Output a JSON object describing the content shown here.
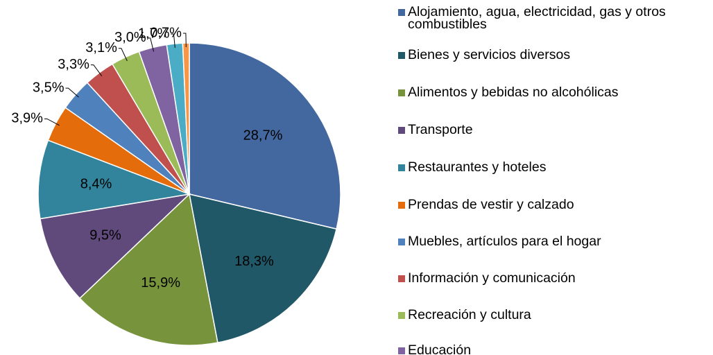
{
  "chart_data": {
    "type": "pie",
    "categories": [
      "Alojamiento, agua, electricidad, gas y otros combustibles",
      "Bienes y servicios diversos",
      "Alimentos y bebidas no alcohólicas",
      "Transporte",
      "Restaurantes y hoteles",
      "Prendas de vestir y calzado",
      "Muebles, artículos para el hogar",
      "Información y comunicación",
      "Recreación y cultura",
      "Educación",
      null,
      null
    ],
    "values": [
      28.7,
      18.3,
      15.9,
      9.5,
      8.4,
      3.9,
      3.5,
      3.3,
      3.1,
      3.0,
      1.7,
      0.7
    ],
    "value_labels": [
      "28,7%",
      "18,3%",
      "15,9%",
      "9,5%",
      "8,4%",
      "3,9%",
      "3,5%",
      "3,3%",
      "3,1%",
      "3,0%",
      "1,7%",
      "0,7%"
    ],
    "colors": [
      "#4368a0",
      "#215868",
      "#77933c",
      "#604a7b",
      "#31849b",
      "#e46c0a",
      "#4f81bd",
      "#c0504d",
      "#9bbb59",
      "#8064a2",
      "#4bacc6",
      "#f79646"
    ],
    "legend": "right"
  }
}
